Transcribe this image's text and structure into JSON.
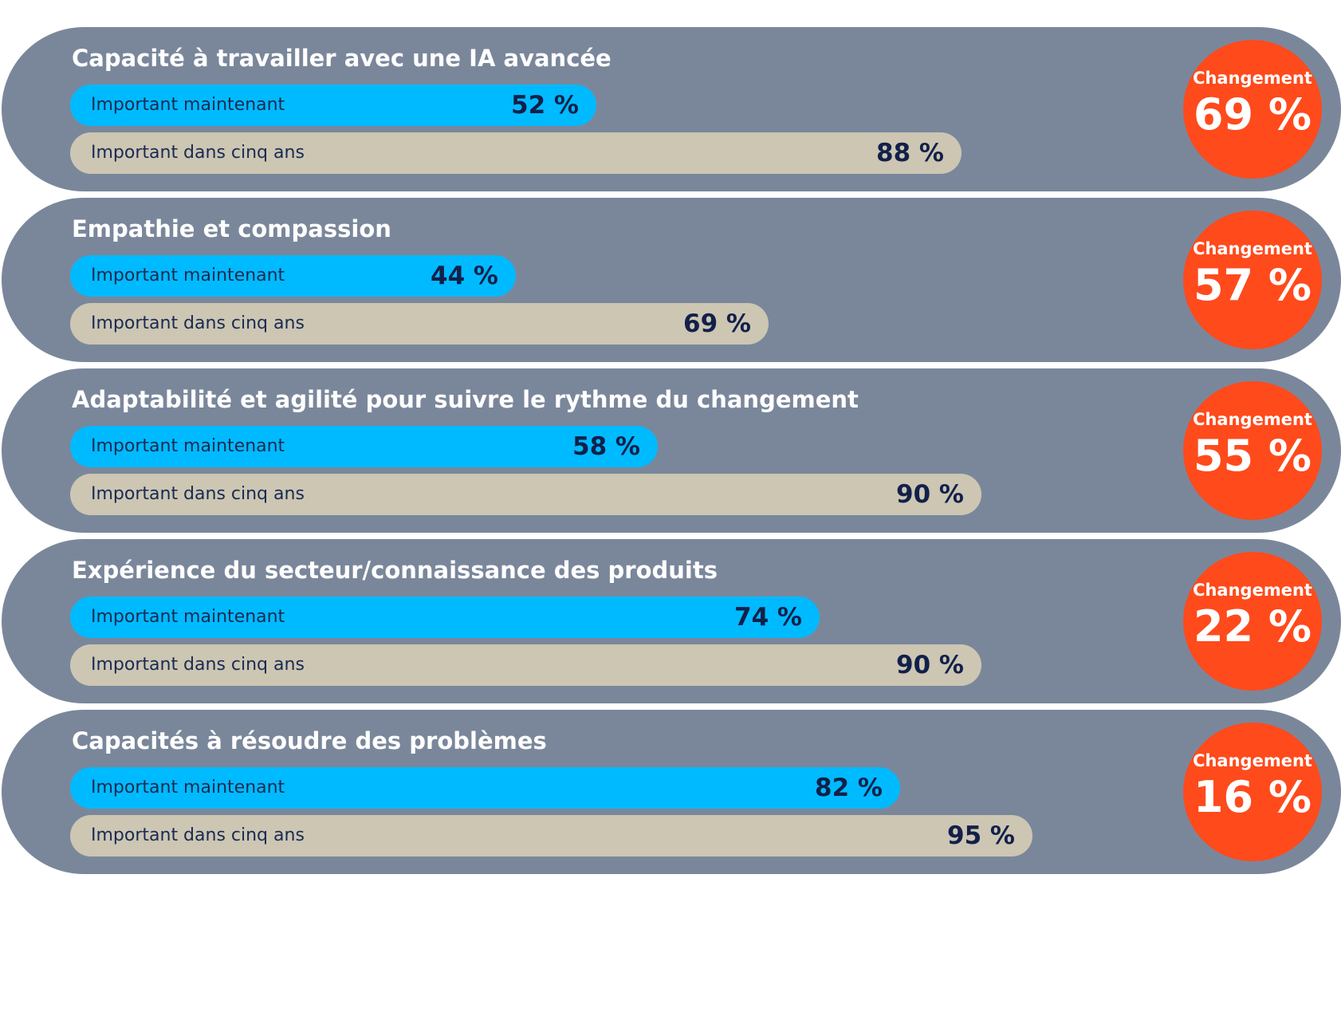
{
  "chart_data": {
    "type": "bar",
    "categories": [
      "Capacité à travailler avec une IA avancée",
      "Empathie et compassion",
      "Adaptabilité et agilité pour suivre le rythme du changement",
      "Expérience du secteur/connaissance des produits",
      "Capacités à résoudre des problèmes"
    ],
    "series": [
      {
        "name": "Important maintenant",
        "color": "#00baff",
        "values": [
          52,
          44,
          58,
          74,
          82
        ]
      },
      {
        "name": "Important dans cinq ans",
        "color": "#ccc6b3",
        "values": [
          88,
          69,
          90,
          90,
          95
        ]
      }
    ],
    "change": {
      "label": "Changement",
      "color": "#ff4a1c",
      "values": [
        69,
        57,
        55,
        22,
        16
      ]
    },
    "value_suffix": " %",
    "ylim": [
      0,
      100
    ],
    "card_color": "#7a879b"
  }
}
